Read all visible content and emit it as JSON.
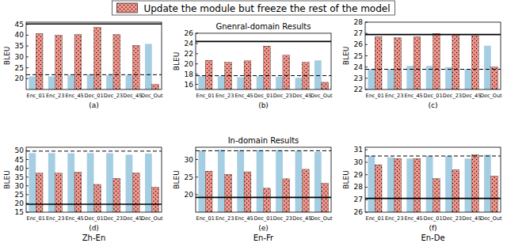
{
  "chart_data": [
    {
      "type": "bar",
      "label": "(a)",
      "categories": [
        "Enc_01",
        "Enc_23",
        "Enc_45",
        "Dec_01",
        "Dec_23",
        "Dec_45",
        "Dec_Out"
      ],
      "ylabel": "BLEU",
      "ylim": [
        15,
        46
      ],
      "yticks": [
        20,
        25,
        30,
        35,
        40,
        45
      ],
      "legend": "top",
      "series": [
        {
          "color": "#a6cee3",
          "values": [
            21.0,
            21.0,
            21.5,
            21.8,
            21.5,
            21.5,
            36.0
          ]
        },
        {
          "name": "Update the module but freeze the rest of the model",
          "color": "#f4968b",
          "marker": "dots",
          "values": [
            40.8,
            40.0,
            40.3,
            43.6,
            40.3,
            35.3,
            17.3
          ]
        }
      ],
      "hlines": [
        {
          "value": 45.2,
          "line_style": "solid"
        },
        {
          "value": 21.8,
          "line_style": "dashed"
        }
      ]
    },
    {
      "type": "bar",
      "title": "Gnenral-domain Results",
      "label": "(b)",
      "categories": [
        "Enc_01",
        "Enc_23",
        "Enc_45",
        "Dec_01",
        "Dec_23",
        "Dec_45",
        "Dec_Out"
      ],
      "ylabel": "BLEU",
      "ylim": [
        15,
        26
      ],
      "yticks": [
        16,
        18,
        20,
        22,
        24,
        26
      ],
      "series": [
        {
          "color": "#a6cee3",
          "values": [
            17.6,
            17.6,
            17.4,
            17.6,
            17.5,
            17.3,
            20.7
          ]
        },
        {
          "color": "#f4968b",
          "marker": "dots",
          "values": [
            20.7,
            20.3,
            20.6,
            23.5,
            21.7,
            20.3,
            16.4
          ]
        }
      ],
      "hlines": [
        {
          "value": 24.4,
          "line_style": "solid"
        },
        {
          "value": 17.7,
          "line_style": "dashed"
        }
      ]
    },
    {
      "type": "bar",
      "label": "(c)",
      "categories": [
        "Enc_01",
        "Enc_23",
        "Enc_45",
        "Dec_01",
        "Dec_23",
        "Dec_45",
        "Dec_Out"
      ],
      "ylabel": "BLEU",
      "ylim": [
        22,
        28
      ],
      "yticks": [
        22,
        23,
        24,
        25,
        26,
        27,
        28
      ],
      "series": [
        {
          "color": "#a6cee3",
          "values": [
            23.8,
            23.8,
            24.1,
            24.1,
            24.0,
            23.8,
            25.9
          ]
        },
        {
          "color": "#f4968b",
          "marker": "dots",
          "values": [
            26.7,
            26.6,
            26.7,
            27.0,
            26.9,
            26.8,
            24.0
          ]
        }
      ],
      "hlines": [
        {
          "value": 26.9,
          "line_style": "solid"
        },
        {
          "value": 23.8,
          "line_style": "dashed"
        }
      ]
    },
    {
      "type": "bar",
      "label": "(d)",
      "xlabel": "Zh-En",
      "categories": [
        "Enc_01",
        "Enc_23",
        "Enc_45",
        "Dec_01",
        "Dec_23",
        "Dec_45",
        "Dec_Out"
      ],
      "ylabel": "BLEU",
      "ylim": [
        15,
        52
      ],
      "yticks": [
        15,
        20,
        25,
        30,
        35,
        40,
        45,
        50
      ],
      "series": [
        {
          "color": "#a6cee3",
          "values": [
            48.7,
            48.7,
            48.6,
            48.7,
            48.6,
            47.8,
            48.4
          ]
        },
        {
          "color": "#f4968b",
          "marker": "dots",
          "values": [
            37.2,
            37.2,
            37.8,
            30.8,
            34.3,
            37.3,
            29.2
          ]
        }
      ],
      "hlines": [
        {
          "value": 19.5,
          "line_style": "solid"
        },
        {
          "value": 49.8,
          "line_style": "dashed"
        }
      ]
    },
    {
      "type": "bar",
      "title": "In-domain Results",
      "label": "(e)",
      "xlabel": "En-Fr",
      "categories": [
        "Enc_01",
        "Enc_23",
        "Enc_45",
        "Dec_01",
        "Dec_23",
        "Dec_45",
        "Dec_Out"
      ],
      "ylabel": "BLEU",
      "ylim": [
        15,
        33.5
      ],
      "yticks": [
        20,
        25,
        30
      ],
      "series": [
        {
          "color": "#a6cee3",
          "values": [
            32.6,
            32.8,
            32.7,
            32.7,
            32.7,
            32.5,
            32.2
          ]
        },
        {
          "color": "#f4968b",
          "marker": "dots",
          "values": [
            26.7,
            25.8,
            26.5,
            21.8,
            24.5,
            27.2,
            23.2
          ]
        }
      ],
      "hlines": [
        {
          "value": 19.2,
          "line_style": "solid"
        },
        {
          "value": 32.5,
          "line_style": "dashed"
        }
      ]
    },
    {
      "type": "bar",
      "label": "(f)",
      "xlabel": "En-De",
      "categories": [
        "Enc_01",
        "Enc_23",
        "Enc_45",
        "Dec_01",
        "Dec_23",
        "Dec_45",
        "Dec_Out"
      ],
      "ylabel": "BLEU",
      "ylim": [
        26,
        31.2
      ],
      "yticks": [
        26,
        27,
        28,
        29,
        30,
        31
      ],
      "series": [
        {
          "color": "#a6cee3",
          "values": [
            30.5,
            30.4,
            30.3,
            30.5,
            30.5,
            30.3,
            30.6
          ]
        },
        {
          "color": "#f4968b",
          "marker": "dots",
          "values": [
            29.8,
            30.3,
            30.3,
            28.7,
            29.4,
            30.6,
            28.9
          ]
        }
      ],
      "hlines": [
        {
          "value": 27.1,
          "line_style": "solid"
        },
        {
          "value": 30.5,
          "line_style": "dashed"
        }
      ]
    }
  ]
}
